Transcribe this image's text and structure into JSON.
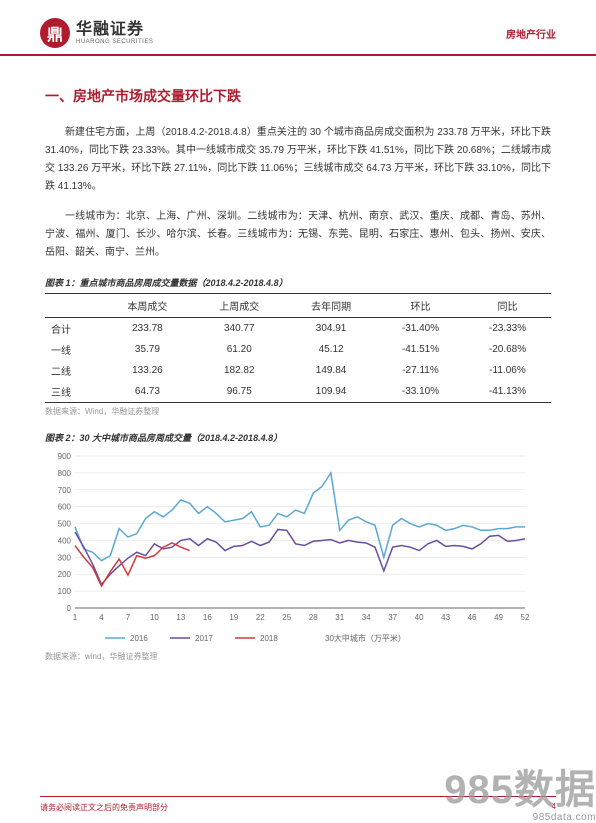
{
  "header": {
    "company_zh": "华融证券",
    "company_en": "HUARONG SECURITIES",
    "logo_text": "鼎",
    "industry": "房地产行业"
  },
  "section_title": "一、房地产市场成交量环比下跌",
  "paragraph1": "新建住宅方面，上周（2018.4.2-2018.4.8）重点关注的 30 个城市商品房成交面积为 233.78 万平米，环比下跌 31.40%，同比下跌 23.33%。其中一线城市成交 35.79 万平米，环比下跌 41.51%，同比下跌 20.68%；二线城市成交 133.26 万平米，环比下跌 27.11%，同比下跌 11.06%；三线城市成交 64.73 万平米，环比下跌 33.10%，同比下跌 41.13%。",
  "paragraph2": "一线城市为：北京、上海、广州、深圳。二线城市为：天津、杭州、南京、武汉、重庆、成都、青岛、苏州、宁波、福州、厦门、长沙、哈尔滨、长春。三线城市为：无锡、东莞、昆明、石家庄、惠州、包头、扬州、安庆、岳阳、韶关、南宁、兰州。",
  "table1": {
    "caption": "图表 1：重点城市商品房周成交量数据（2018.4.2-2018.4.8）",
    "headers": [
      "",
      "本周成交",
      "上周成交",
      "去年同期",
      "环比",
      "同比"
    ],
    "rows": [
      [
        "合计",
        "233.78",
        "340.77",
        "304.91",
        "-31.40%",
        "-23.33%"
      ],
      [
        "一线",
        "35.79",
        "61.20",
        "45.12",
        "-41.51%",
        "-20.68%"
      ],
      [
        "二线",
        "133.26",
        "182.82",
        "149.84",
        "-27.11%",
        "-11.06%"
      ],
      [
        "三线",
        "64.73",
        "96.75",
        "109.94",
        "-33.10%",
        "-41.13%"
      ]
    ],
    "source": "数据来源：Wind，华融证券整理"
  },
  "chart": {
    "caption": "图表 2：30 大中城市商品房周成交量（2018.4.2-2018.4.8）",
    "type": "line",
    "ylim": [
      0,
      900
    ],
    "ytick_step": 100,
    "x_categories": [
      1,
      4,
      7,
      10,
      13,
      16,
      19,
      22,
      25,
      28,
      31,
      34,
      37,
      40,
      43,
      46,
      49,
      52
    ],
    "background_color": "#ffffff",
    "grid_color": "#dddddd",
    "series": [
      {
        "name": "2016",
        "color": "#5aa7d6",
        "values": [
          480,
          350,
          330,
          280,
          310,
          470,
          420,
          440,
          530,
          570,
          540,
          580,
          640,
          620,
          560,
          600,
          560,
          510,
          520,
          530,
          570,
          480,
          490,
          560,
          540,
          580,
          560,
          680,
          720,
          800,
          460,
          520,
          540,
          510,
          490,
          300,
          490,
          530,
          500,
          480,
          500,
          490,
          460,
          470,
          490,
          480,
          460,
          460,
          470,
          470,
          480,
          480
        ]
      },
      {
        "name": "2017",
        "color": "#6b4ca0",
        "values": [
          450,
          360,
          260,
          140,
          200,
          250,
          295,
          330,
          310,
          380,
          350,
          360,
          400,
          410,
          370,
          410,
          390,
          340,
          365,
          370,
          395,
          370,
          390,
          465,
          460,
          380,
          370,
          395,
          400,
          405,
          385,
          400,
          390,
          385,
          360,
          220,
          360,
          370,
          360,
          340,
          380,
          400,
          365,
          370,
          365,
          350,
          380,
          425,
          430,
          395,
          400,
          410
        ]
      },
      {
        "name": "2018",
        "color": "#d23b3b",
        "values": [
          370,
          300,
          240,
          130,
          215,
          290,
          195,
          310,
          295,
          310,
          360,
          385,
          360,
          340
        ]
      }
    ],
    "legend": {
      "items": [
        "2016",
        "2017",
        "2018"
      ],
      "x_axis_label": "30大中城市（万平米）"
    },
    "source": "数据来源：wind，华融证券整理"
  },
  "footer": {
    "disclaimer": "请务必阅读正文之后的免责声明部分",
    "page": "4"
  },
  "watermark": {
    "big": "985数据",
    "small": "985data.com"
  }
}
